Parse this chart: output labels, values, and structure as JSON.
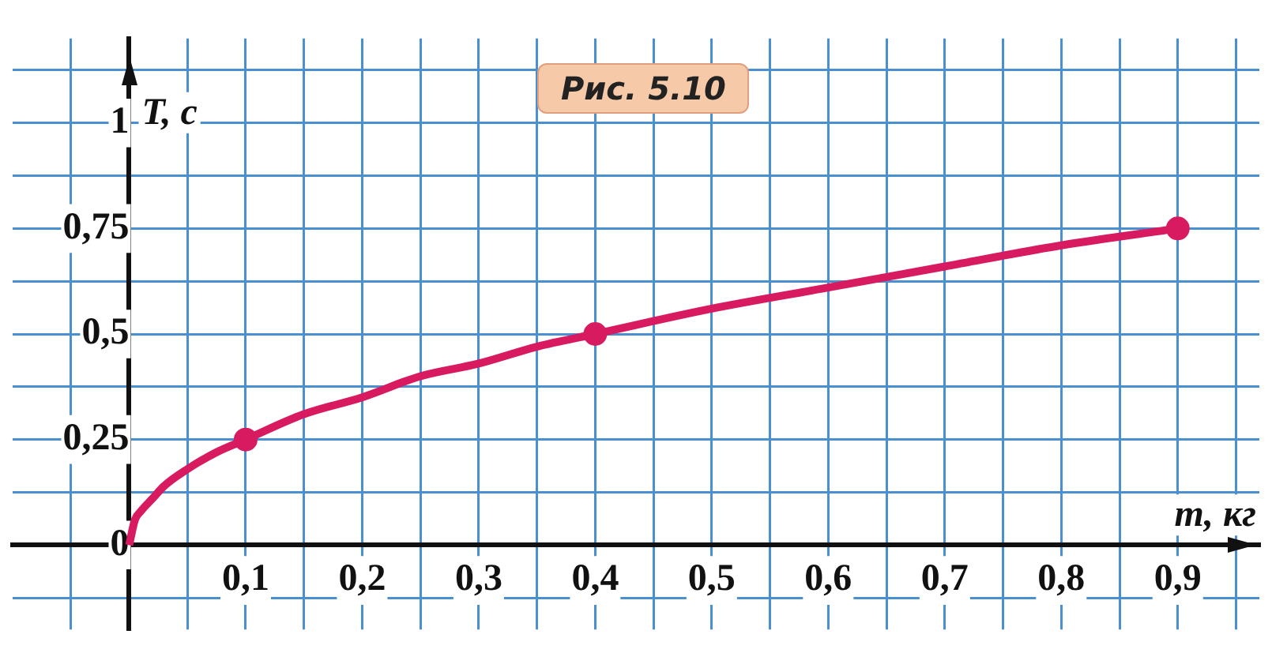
{
  "chart_data": {
    "type": "line",
    "xlabel": "m, кг",
    "ylabel": "T, с",
    "annotations": [
      "Рис. 5.10"
    ],
    "xlim": [
      -0.1,
      0.97
    ],
    "ylim": [
      -0.2,
      1.2
    ],
    "xticks": [
      {
        "value": -0.05,
        "label": null
      },
      {
        "value": 0.05,
        "label": null
      },
      {
        "value": 0.1,
        "label": "0,1"
      },
      {
        "value": 0.15,
        "label": null
      },
      {
        "value": 0.2,
        "label": "0,2"
      },
      {
        "value": 0.25,
        "label": null
      },
      {
        "value": 0.3,
        "label": "0,3"
      },
      {
        "value": 0.35,
        "label": null
      },
      {
        "value": 0.4,
        "label": "0,4"
      },
      {
        "value": 0.45,
        "label": null
      },
      {
        "value": 0.5,
        "label": "0,5"
      },
      {
        "value": 0.55,
        "label": null
      },
      {
        "value": 0.6,
        "label": "0,6"
      },
      {
        "value": 0.65,
        "label": null
      },
      {
        "value": 0.7,
        "label": "0,7"
      },
      {
        "value": 0.75,
        "label": null
      },
      {
        "value": 0.8,
        "label": "0,8"
      },
      {
        "value": 0.85,
        "label": null
      },
      {
        "value": 0.9,
        "label": "0,9"
      },
      {
        "value": 0.95,
        "label": null
      }
    ],
    "yticks": [
      {
        "value": -0.125,
        "label": null
      },
      0,
      {
        "value": 0.125,
        "label": null
      },
      {
        "value": 0.25,
        "label": "0,25"
      },
      {
        "value": 0.375,
        "label": null
      },
      {
        "value": 0.5,
        "label": "0,5"
      },
      {
        "value": 0.625,
        "label": null
      },
      {
        "value": 0.75,
        "label": "0,75"
      },
      {
        "value": 0.875,
        "label": null
      },
      1,
      {
        "value": 1.125,
        "label": null
      }
    ],
    "grid": true,
    "legend": false,
    "series": [
      {
        "type": "line",
        "marker": "none",
        "color": "#d81b60",
        "x": [
          0,
          0.005,
          0.01,
          0.02,
          0.03,
          0.05,
          0.075,
          0.1,
          0.15,
          0.2,
          0.25,
          0.3,
          0.35,
          0.4,
          0.5,
          0.6,
          0.7,
          0.8,
          0.9
        ],
        "values": [
          0,
          0.06,
          0.08,
          0.11,
          0.14,
          0.18,
          0.22,
          0.25,
          0.31,
          0.35,
          0.4,
          0.43,
          0.47,
          0.5,
          0.56,
          0.61,
          0.66,
          0.71,
          0.75
        ]
      },
      {
        "type": "scatter",
        "marker": "circle",
        "color": "#d81b60",
        "x": [
          0.1,
          0.4,
          0.9
        ],
        "values": [
          0.25,
          0.5,
          0.75
        ]
      }
    ]
  }
}
